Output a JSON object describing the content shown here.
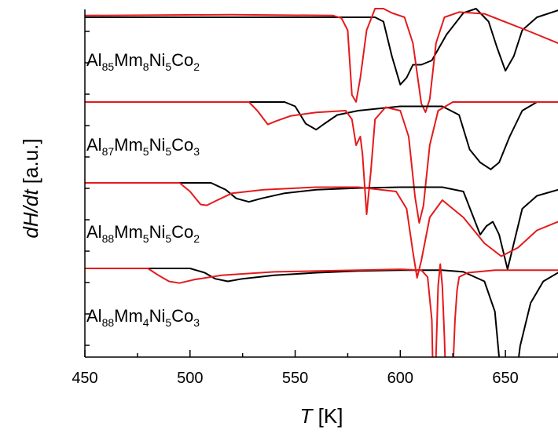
{
  "chart_data": {
    "type": "line",
    "xlabel": {
      "var": "T",
      "unit": " [K]"
    },
    "ylabel": {
      "var": "dH/dt",
      "unit": " [a.u.]"
    },
    "xlim": [
      450,
      675
    ],
    "xticks": [
      450,
      500,
      550,
      600,
      650
    ],
    "y_ticks_labeled": false,
    "colors": {
      "black": "#000000",
      "red": "#e41a1c"
    },
    "samples": [
      {
        "label": [
          [
            "Al",
            ""
          ],
          [
            "85",
            "sub"
          ],
          [
            "Mm",
            ""
          ],
          [
            "8",
            "sub"
          ],
          [
            "Ni",
            ""
          ],
          [
            "5",
            "sub"
          ],
          [
            "Co",
            ""
          ],
          [
            "2",
            "sub"
          ]
        ],
        "series": [
          {
            "color": "black",
            "points": [
              [
                450,
                0.0
              ],
              [
                560,
                0.0
              ],
              [
                588,
                0.0
              ],
              [
                592,
                -0.05
              ],
              [
                596,
                -0.45
              ],
              [
                600,
                -0.78
              ],
              [
                603,
                -0.7
              ],
              [
                606,
                -0.55
              ],
              [
                610,
                -0.55
              ],
              [
                615,
                -0.5
              ],
              [
                622,
                -0.2
              ],
              [
                630,
                0.05
              ],
              [
                636,
                0.1
              ],
              [
                642,
                -0.05
              ],
              [
                646,
                -0.35
              ],
              [
                650,
                -0.62
              ],
              [
                654,
                -0.45
              ],
              [
                658,
                -0.15
              ],
              [
                665,
                0.0
              ],
              [
                675,
                0.08
              ]
            ]
          },
          {
            "color": "red",
            "points": [
              [
                450,
                0.02
              ],
              [
                520,
                0.03
              ],
              [
                568,
                0.02
              ],
              [
                572,
                -0.01
              ],
              [
                575,
                -0.15
              ],
              [
                577,
                -0.9
              ],
              [
                579,
                -0.98
              ],
              [
                581,
                -0.7
              ],
              [
                584,
                -0.15
              ],
              [
                588,
                0.1
              ],
              [
                592,
                0.1
              ],
              [
                596,
                0.05
              ],
              [
                602,
                0.0
              ],
              [
                606,
                -0.3
              ],
              [
                610,
                -1.0
              ],
              [
                612,
                -1.1
              ],
              [
                614,
                -0.95
              ],
              [
                617,
                -0.3
              ],
              [
                621,
                0.0
              ],
              [
                628,
                0.06
              ],
              [
                640,
                0.04
              ],
              [
                660,
                -0.15
              ],
              [
                675,
                -0.3
              ]
            ]
          }
        ]
      },
      {
        "label": [
          [
            "Al",
            ""
          ],
          [
            "87",
            "sub"
          ],
          [
            "Mm",
            ""
          ],
          [
            "5",
            "sub"
          ],
          [
            "Ni",
            ""
          ],
          [
            "5",
            "sub"
          ],
          [
            "Co",
            ""
          ],
          [
            "3",
            "sub"
          ]
        ],
        "series": [
          {
            "color": "black",
            "points": [
              [
                450,
                0.0
              ],
              [
                545,
                0.0
              ],
              [
                550,
                -0.05
              ],
              [
                555,
                -0.25
              ],
              [
                560,
                -0.32
              ],
              [
                564,
                -0.25
              ],
              [
                570,
                -0.15
              ],
              [
                580,
                -0.1
              ],
              [
                600,
                -0.05
              ],
              [
                620,
                -0.05
              ],
              [
                628,
                -0.15
              ],
              [
                633,
                -0.55
              ],
              [
                638,
                -0.7
              ],
              [
                643,
                -0.78
              ],
              [
                647,
                -0.7
              ],
              [
                652,
                -0.4
              ],
              [
                658,
                -0.1
              ],
              [
                665,
                0.0
              ],
              [
                675,
                0.0
              ]
            ]
          },
          {
            "color": "red",
            "points": [
              [
                450,
                0.0
              ],
              [
                528,
                0.0
              ],
              [
                532,
                -0.1
              ],
              [
                537,
                -0.26
              ],
              [
                541,
                -0.22
              ],
              [
                548,
                -0.16
              ],
              [
                560,
                -0.12
              ],
              [
                574,
                -0.1
              ],
              [
                577,
                -0.2
              ],
              [
                579,
                -0.5
              ],
              [
                580,
                -0.45
              ],
              [
                581,
                -0.4
              ],
              [
                582,
                -0.6
              ],
              [
                584,
                -1.3
              ],
              [
                586,
                -0.8
              ],
              [
                588,
                -0.2
              ],
              [
                593,
                -0.06
              ],
              [
                600,
                -0.1
              ],
              [
                604,
                -0.4
              ],
              [
                607,
                -1.1
              ],
              [
                609,
                -1.4
              ],
              [
                611,
                -1.2
              ],
              [
                614,
                -0.5
              ],
              [
                618,
                -0.1
              ],
              [
                625,
                0.0
              ],
              [
                640,
                0.0
              ],
              [
                660,
                0.0
              ],
              [
                675,
                0.0
              ]
            ]
          }
        ]
      },
      {
        "label": [
          [
            "Al",
            ""
          ],
          [
            "88",
            "sub"
          ],
          [
            "Mm",
            ""
          ],
          [
            "5",
            "sub"
          ],
          [
            "Ni",
            ""
          ],
          [
            "5",
            "sub"
          ],
          [
            "Co",
            ""
          ],
          [
            "2",
            "sub"
          ]
        ],
        "series": [
          {
            "color": "black",
            "points": [
              [
                450,
                0.0
              ],
              [
                510,
                0.0
              ],
              [
                517,
                -0.08
              ],
              [
                522,
                -0.18
              ],
              [
                528,
                -0.22
              ],
              [
                534,
                -0.18
              ],
              [
                545,
                -0.12
              ],
              [
                560,
                -0.08
              ],
              [
                580,
                -0.06
              ],
              [
                600,
                -0.05
              ],
              [
                620,
                -0.05
              ],
              [
                630,
                -0.1
              ],
              [
                634,
                -0.35
              ],
              [
                638,
                -0.6
              ],
              [
                641,
                -0.5
              ],
              [
                644,
                -0.45
              ],
              [
                647,
                -0.6
              ],
              [
                651,
                -1.0
              ],
              [
                654,
                -0.7
              ],
              [
                658,
                -0.3
              ],
              [
                665,
                -0.15
              ],
              [
                675,
                -0.08
              ]
            ]
          },
          {
            "color": "red",
            "points": [
              [
                450,
                0.0
              ],
              [
                495,
                0.0
              ],
              [
                500,
                -0.1
              ],
              [
                505,
                -0.25
              ],
              [
                508,
                -0.26
              ],
              [
                513,
                -0.2
              ],
              [
                520,
                -0.12
              ],
              [
                535,
                -0.08
              ],
              [
                560,
                -0.05
              ],
              [
                580,
                -0.05
              ],
              [
                598,
                -0.1
              ],
              [
                603,
                -0.3
              ],
              [
                606,
                -0.8
              ],
              [
                608,
                -1.1
              ],
              [
                610,
                -0.9
              ],
              [
                614,
                -0.4
              ],
              [
                620,
                -0.2
              ],
              [
                630,
                -0.4
              ],
              [
                640,
                -0.7
              ],
              [
                648,
                -0.85
              ],
              [
                656,
                -0.75
              ],
              [
                665,
                -0.55
              ],
              [
                675,
                -0.45
              ]
            ]
          }
        ]
      },
      {
        "label": [
          [
            "Al",
            ""
          ],
          [
            "88",
            "sub"
          ],
          [
            "Mm",
            ""
          ],
          [
            "4",
            "sub"
          ],
          [
            "Ni",
            ""
          ],
          [
            "5",
            "sub"
          ],
          [
            "Co",
            ""
          ],
          [
            "3",
            "sub"
          ]
        ],
        "series": [
          {
            "color": "black",
            "points": [
              [
                450,
                0.0
              ],
              [
                500,
                0.0
              ],
              [
                507,
                -0.05
              ],
              [
                512,
                -0.12
              ],
              [
                518,
                -0.15
              ],
              [
                525,
                -0.12
              ],
              [
                540,
                -0.08
              ],
              [
                560,
                -0.05
              ],
              [
                580,
                -0.03
              ],
              [
                600,
                -0.02
              ],
              [
                620,
                -0.02
              ],
              [
                630,
                -0.04
              ],
              [
                640,
                -0.15
              ],
              [
                645,
                -0.5
              ],
              [
                648,
                -1.3
              ],
              [
                651,
                -1.7
              ],
              [
                654,
                -1.5
              ],
              [
                657,
                -0.9
              ],
              [
                662,
                -0.4
              ],
              [
                668,
                -0.15
              ],
              [
                675,
                -0.05
              ]
            ]
          },
          {
            "color": "red",
            "points": [
              [
                450,
                0.0
              ],
              [
                480,
                0.0
              ],
              [
                485,
                -0.08
              ],
              [
                490,
                -0.15
              ],
              [
                495,
                -0.17
              ],
              [
                502,
                -0.13
              ],
              [
                515,
                -0.08
              ],
              [
                540,
                -0.04
              ],
              [
                580,
                -0.02
              ],
              [
                600,
                -0.01
              ],
              [
                610,
                -0.02
              ],
              [
                613,
                -0.1
              ],
              [
                615,
                -0.6
              ],
              [
                616,
                -1.8
              ],
              [
                617,
                -1.0
              ],
              [
                618,
                -0.2
              ],
              [
                619,
                0.05
              ],
              [
                620,
                -0.2
              ],
              [
                621,
                -0.8
              ],
              [
                622,
                -1.6
              ],
              [
                623,
                -1.9
              ],
              [
                624,
                -1.7
              ],
              [
                625,
                -1.2
              ],
              [
                626,
                -0.6
              ],
              [
                627,
                -0.25
              ],
              [
                628,
                -0.1
              ],
              [
                632,
                -0.05
              ],
              [
                645,
                -0.02
              ],
              [
                660,
                -0.02
              ],
              [
                675,
                -0.02
              ]
            ]
          }
        ]
      }
    ]
  }
}
